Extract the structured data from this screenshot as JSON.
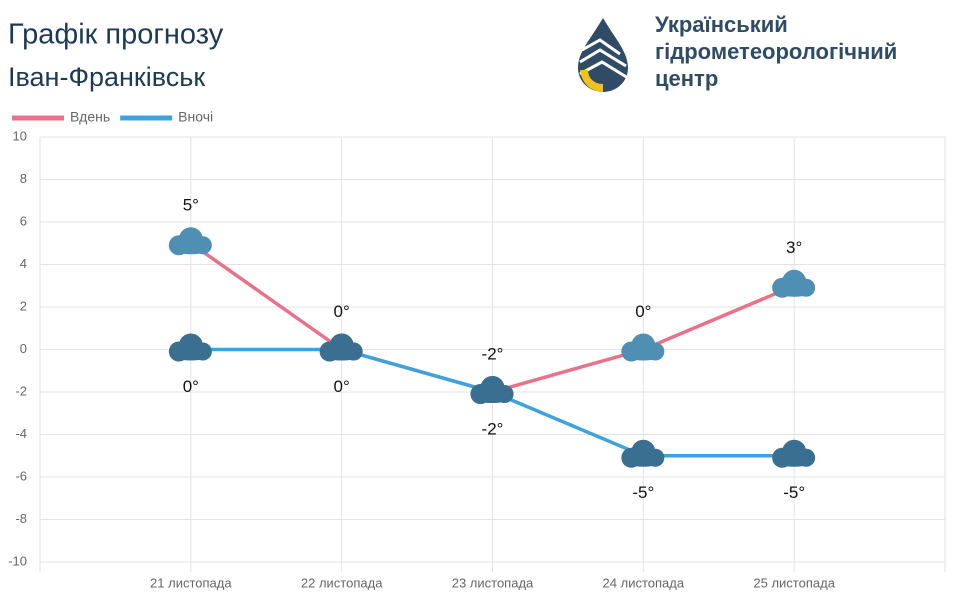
{
  "header": {
    "organization": [
      "Український",
      "гідрометеорологічний",
      "центр"
    ]
  },
  "chart_data": {
    "type": "line",
    "title": "Графік прогнозу",
    "subtitle": "Іван-Франківськ",
    "categories": [
      "21 листопада",
      "22 листопада",
      "23 листопада",
      "24 листопада",
      "25 листопада"
    ],
    "series": [
      {
        "name": "Вдень",
        "color": "#e8728a",
        "values": [
          5,
          0,
          -2,
          0,
          3
        ],
        "value_labels": [
          "5°",
          "0°",
          "-2°",
          "0°",
          "3°"
        ]
      },
      {
        "name": "Вночі",
        "color": "#3ea3dc",
        "values": [
          0,
          0,
          -2,
          -5,
          -5
        ],
        "value_labels": [
          "0°",
          "0°",
          "-2°",
          "-5°",
          "-5°"
        ]
      }
    ],
    "ylim": [
      -10,
      10
    ],
    "yticks": [
      -10,
      -8,
      -6,
      -4,
      -2,
      0,
      2,
      4,
      6,
      8,
      10
    ],
    "grid": true,
    "legend": "top-left"
  }
}
